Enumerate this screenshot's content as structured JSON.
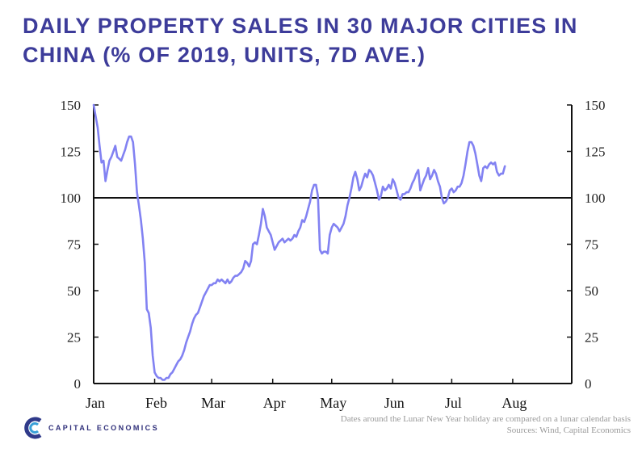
{
  "title": "DAILY PROPERTY SALES IN 30 MAJOR CITIES IN CHINA (% OF 2019, UNITS, 7D AVE.)",
  "colors": {
    "title": "#3d3c9a",
    "line": "#8282f2",
    "axis": "#111111"
  },
  "footer": {
    "brand": "CAPITAL ECONOMICS",
    "note": "Dates around the Lunar New Year holiday are compared on a lunar calendar basis",
    "sources": "Sources: Wind, Capital Economics"
  },
  "chart_data": {
    "type": "line",
    "title": "DAILY PROPERTY SALES IN 30 MAJOR CITIES IN CHINA (% OF 2019, UNITS, 7D AVE.)",
    "xlabel": "",
    "ylabel": "",
    "x_unit": "day of year 2020",
    "xlim": [
      1,
      244
    ],
    "ylim": [
      0,
      150
    ],
    "y_ticks_left": [
      "150",
      "125",
      "100",
      "75",
      "50",
      "25",
      "0"
    ],
    "y_ticks_right": [
      "150",
      "125",
      "100",
      "75",
      "50",
      "25",
      "0"
    ],
    "x_ticks": [
      {
        "label": "Jan",
        "day": 1
      },
      {
        "label": "Feb",
        "day": 32
      },
      {
        "label": "Mar",
        "day": 61
      },
      {
        "label": "Apr",
        "day": 92
      },
      {
        "label": "May",
        "day": 122
      },
      {
        "label": "Jun",
        "day": 153
      },
      {
        "label": "Jul",
        "day": 183
      },
      {
        "label": "Aug",
        "day": 214
      }
    ],
    "reference_line": 100,
    "series": [
      {
        "name": "Daily property sales (% of 2019, 7d ave.)",
        "points": [
          [
            1,
            150
          ],
          [
            2,
            144
          ],
          [
            3,
            138
          ],
          [
            4,
            128
          ],
          [
            5,
            119
          ],
          [
            6,
            120
          ],
          [
            7,
            109
          ],
          [
            8,
            115
          ],
          [
            9,
            120
          ],
          [
            10,
            122
          ],
          [
            11,
            125
          ],
          [
            12,
            128
          ],
          [
            13,
            122
          ],
          [
            14,
            121
          ],
          [
            15,
            120
          ],
          [
            16,
            123
          ],
          [
            17,
            126
          ],
          [
            18,
            130
          ],
          [
            19,
            133
          ],
          [
            20,
            133
          ],
          [
            21,
            130
          ],
          [
            22,
            118
          ],
          [
            23,
            103
          ],
          [
            24,
            96
          ],
          [
            25,
            88
          ],
          [
            26,
            78
          ],
          [
            27,
            65
          ],
          [
            28,
            40
          ],
          [
            29,
            38
          ],
          [
            30,
            30
          ],
          [
            31,
            15
          ],
          [
            32,
            6
          ],
          [
            33,
            4
          ],
          [
            34,
            3
          ],
          [
            35,
            3
          ],
          [
            36,
            2
          ],
          [
            37,
            2
          ],
          [
            38,
            3
          ],
          [
            39,
            3
          ],
          [
            40,
            5
          ],
          [
            41,
            6
          ],
          [
            42,
            8
          ],
          [
            43,
            10
          ],
          [
            44,
            12
          ],
          [
            45,
            13
          ],
          [
            46,
            15
          ],
          [
            47,
            18
          ],
          [
            48,
            22
          ],
          [
            49,
            25
          ],
          [
            50,
            28
          ],
          [
            51,
            32
          ],
          [
            52,
            35
          ],
          [
            53,
            37
          ],
          [
            54,
            38
          ],
          [
            55,
            41
          ],
          [
            56,
            44
          ],
          [
            57,
            47
          ],
          [
            58,
            49
          ],
          [
            59,
            51
          ],
          [
            60,
            53
          ],
          [
            61,
            53
          ],
          [
            62,
            54
          ],
          [
            63,
            54
          ],
          [
            64,
            56
          ],
          [
            65,
            55
          ],
          [
            66,
            56
          ],
          [
            67,
            55
          ],
          [
            68,
            54
          ],
          [
            69,
            56
          ],
          [
            70,
            54
          ],
          [
            71,
            55
          ],
          [
            72,
            57
          ],
          [
            73,
            58
          ],
          [
            74,
            58
          ],
          [
            75,
            59
          ],
          [
            76,
            60
          ],
          [
            77,
            62
          ],
          [
            78,
            66
          ],
          [
            79,
            65
          ],
          [
            80,
            63
          ],
          [
            81,
            66
          ],
          [
            82,
            75
          ],
          [
            83,
            76
          ],
          [
            84,
            75
          ],
          [
            85,
            80
          ],
          [
            86,
            86
          ],
          [
            87,
            94
          ],
          [
            88,
            90
          ],
          [
            89,
            84
          ],
          [
            90,
            82
          ],
          [
            91,
            80
          ],
          [
            92,
            76
          ],
          [
            93,
            72
          ],
          [
            94,
            74
          ],
          [
            95,
            76
          ],
          [
            96,
            77
          ],
          [
            97,
            78
          ],
          [
            98,
            76
          ],
          [
            99,
            77
          ],
          [
            100,
            78
          ],
          [
            101,
            77
          ],
          [
            102,
            78
          ],
          [
            103,
            80
          ],
          [
            104,
            79
          ],
          [
            105,
            82
          ],
          [
            106,
            84
          ],
          [
            107,
            88
          ],
          [
            108,
            87
          ],
          [
            109,
            90
          ],
          [
            110,
            94
          ],
          [
            111,
            98
          ],
          [
            112,
            104
          ],
          [
            113,
            107
          ],
          [
            114,
            107
          ],
          [
            115,
            101
          ],
          [
            116,
            72
          ],
          [
            117,
            70
          ],
          [
            118,
            71
          ],
          [
            119,
            71
          ],
          [
            120,
            70
          ],
          [
            121,
            80
          ],
          [
            122,
            84
          ],
          [
            123,
            86
          ],
          [
            124,
            85
          ],
          [
            125,
            84
          ],
          [
            126,
            82
          ],
          [
            127,
            84
          ],
          [
            128,
            86
          ],
          [
            129,
            90
          ],
          [
            130,
            96
          ],
          [
            131,
            100
          ],
          [
            132,
            105
          ],
          [
            133,
            111
          ],
          [
            134,
            114
          ],
          [
            135,
            110
          ],
          [
            136,
            104
          ],
          [
            137,
            106
          ],
          [
            138,
            110
          ],
          [
            139,
            113
          ],
          [
            140,
            111
          ],
          [
            141,
            115
          ],
          [
            142,
            114
          ],
          [
            143,
            112
          ],
          [
            144,
            108
          ],
          [
            145,
            104
          ],
          [
            146,
            99
          ],
          [
            147,
            101
          ],
          [
            148,
            106
          ],
          [
            149,
            104
          ],
          [
            150,
            105
          ],
          [
            151,
            107
          ],
          [
            152,
            105
          ],
          [
            153,
            110
          ],
          [
            154,
            108
          ],
          [
            155,
            104
          ],
          [
            156,
            100
          ],
          [
            157,
            99
          ],
          [
            158,
            102
          ],
          [
            159,
            102
          ],
          [
            160,
            103
          ],
          [
            161,
            103
          ],
          [
            162,
            105
          ],
          [
            163,
            108
          ],
          [
            164,
            110
          ],
          [
            165,
            113
          ],
          [
            166,
            115
          ],
          [
            167,
            104
          ],
          [
            168,
            107
          ],
          [
            169,
            110
          ],
          [
            170,
            112
          ],
          [
            171,
            116
          ],
          [
            172,
            110
          ],
          [
            173,
            112
          ],
          [
            174,
            115
          ],
          [
            175,
            113
          ],
          [
            176,
            109
          ],
          [
            177,
            106
          ],
          [
            178,
            100
          ],
          [
            179,
            97
          ],
          [
            180,
            98
          ],
          [
            181,
            100
          ],
          [
            182,
            104
          ],
          [
            183,
            105
          ],
          [
            184,
            103
          ],
          [
            185,
            104
          ],
          [
            186,
            106
          ],
          [
            187,
            106
          ],
          [
            188,
            108
          ],
          [
            189,
            112
          ],
          [
            190,
            118
          ],
          [
            191,
            125
          ],
          [
            192,
            130
          ],
          [
            193,
            130
          ],
          [
            194,
            128
          ],
          [
            195,
            124
          ],
          [
            196,
            118
          ],
          [
            197,
            112
          ],
          [
            198,
            109
          ],
          [
            199,
            116
          ],
          [
            200,
            117
          ],
          [
            201,
            116
          ],
          [
            202,
            118
          ],
          [
            203,
            119
          ],
          [
            204,
            118
          ],
          [
            205,
            119
          ],
          [
            206,
            114
          ],
          [
            207,
            112
          ],
          [
            208,
            113
          ],
          [
            209,
            113
          ],
          [
            210,
            117
          ]
        ]
      }
    ]
  }
}
